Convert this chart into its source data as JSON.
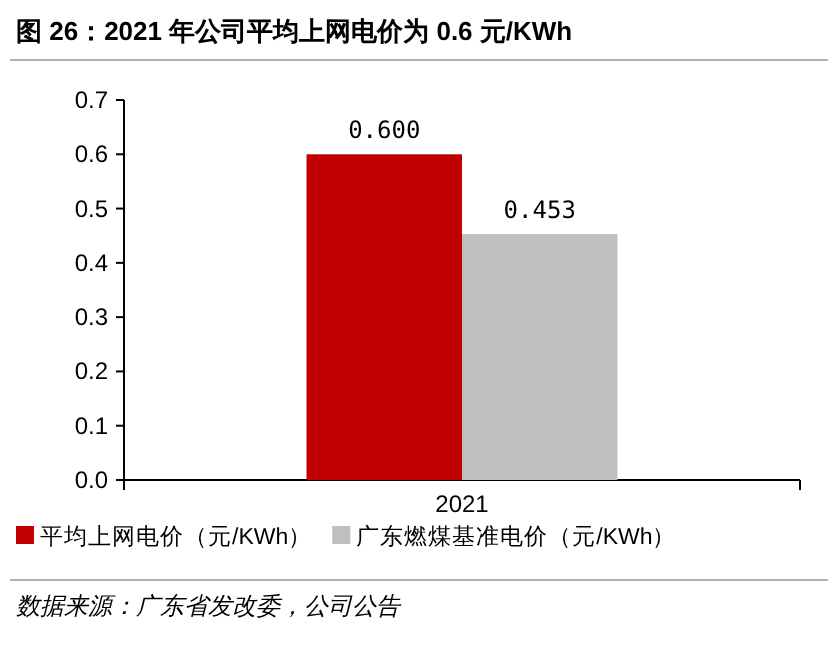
{
  "chart_data": {
    "type": "bar",
    "title": "图 26：2021 年公司平均上网电价为 0.6 元/KWh",
    "categories": [
      "2021"
    ],
    "series": [
      {
        "name": "平均上网电价（元/KWh）",
        "color": "#c00000",
        "values": [
          0.6
        ],
        "value_labels": [
          "0.600"
        ]
      },
      {
        "name": "广东燃煤基准电价（元/KWh）",
        "color": "#bfbfbf",
        "values": [
          0.453
        ],
        "value_labels": [
          "0.453"
        ]
      }
    ],
    "ylim": [
      0,
      0.7
    ],
    "yticks": [
      {
        "value": 0,
        "label": "0.0"
      },
      0.1,
      0.2,
      0.3,
      0.4,
      0.5,
      0.6,
      0.7
    ],
    "legend": "bottom",
    "grid": false,
    "annotations": [
      "数据来源：广东省发改委，公司公告"
    ]
  }
}
